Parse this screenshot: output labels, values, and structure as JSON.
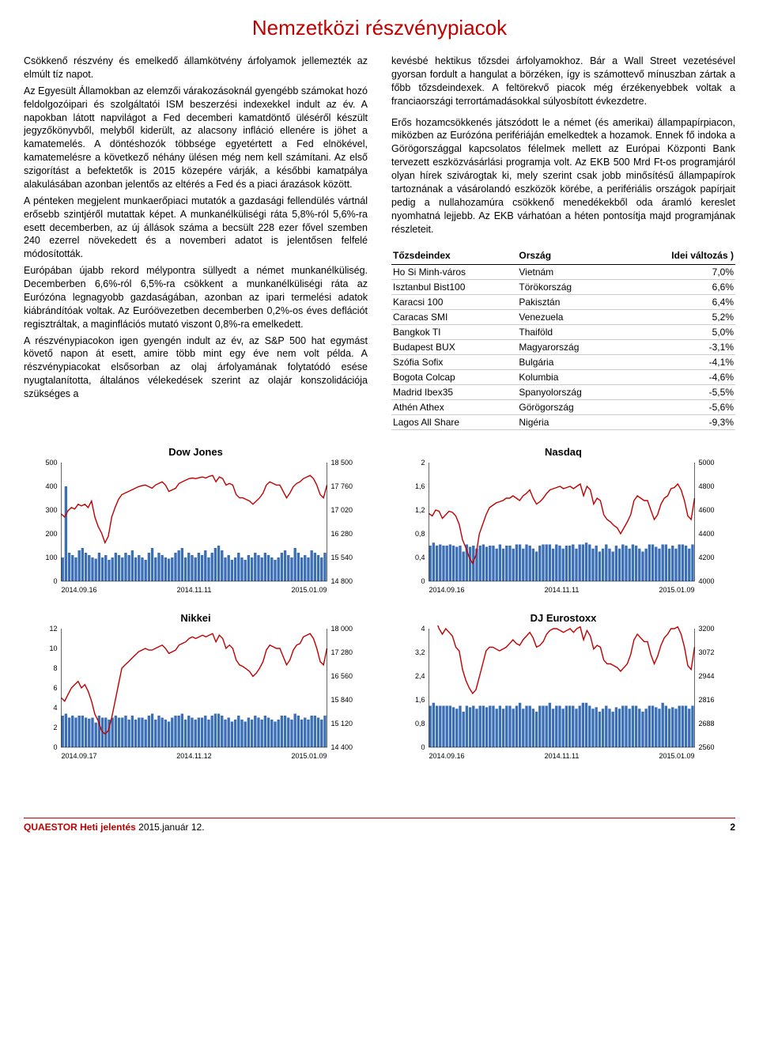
{
  "title": "Nemzetközi részvénypiacok",
  "left": {
    "p1": "Csökkenő részvény és emelkedő államkötvény árfolyamok jellemezték az elmúlt tíz napot.",
    "p2": "Az Egyesült Államokban az elemzői várakozásoknál gyengébb számokat hozó feldolgozóipari és szolgáltatói ISM beszerzési indexekkel indult az év. A napokban látott napvilágot a Fed decemberi kamatdöntő üléséről készült jegyzőkönyvből, melyből kiderült, az alacsony infláció ellenére is jöhet a kamatemelés. A döntéshozók többsége egyetértett a Fed elnökével, kamatemelésre a következő néhány ülésen még nem kell számítani. Az első szigorítást a befektetők is 2015 közepére várják, a későbbi kamatpálya alakulásában azonban jelentős az eltérés a Fed és a piaci árazások között.",
    "p3": "A pénteken megjelent munkaerőpiaci mutatók a gazdasági fellendülés vártnál erősebb szintjéről mutattak képet. A munkanélküliségi ráta 5,8%-ról 5,6%-ra esett decemberben, az új állások száma a becsült 228 ezer fővel szemben 240 ezerrel növekedett és a novemberi adatot is jelentősen felfelé módosították.",
    "p4": "Európában újabb rekord mélypontra süllyedt a német munkanélküliség. Decemberben 6,6%-ról 6,5%-ra csökkent a munkanélküliségi ráta az Eurózóna legnagyobb gazdaságában, azonban az ipari termelési adatok kiábrándítóak voltak. Az Euróövezetben decemberben 0,2%-os éves deflációt regisztráltak, a maginflációs mutató viszont 0,8%-ra emelkedett.",
    "p5": "A részvénypiacokon igen gyengén indult az év, az S&P 500 hat egymást követő napon át esett, amire több mint egy éve nem volt példa. A részvénypiacokat elsősorban az olaj árfolyamának folytatódó esése nyugtalanította, általános vélekedések szerint az olajár konszolidációja szükséges a"
  },
  "right": {
    "p1": "kevésbé hektikus tőzsdei árfolyamokhoz. Bár a Wall Street vezetésével gyorsan fordult a hangulat a börzéken, így is számottevő mínuszban zártak a főbb tőzsdeindexek. A feltörekvő piacok még érzékenyebbek voltak a franciaországi terrortámadásokkal súlyosbított évkezdetre.",
    "p2": "Erős hozamcsökkenés játszódott le a német (és amerikai) állampapírpiacon, miközben az Eurózóna perifériáján emelkedtek a hozamok. Ennek fő indoka a Görögországgal kapcsolatos félelmek mellett az Európai Központi Bank tervezett eszközvásárlási programja volt. Az EKB 500 Mrd Ft-os programjáról olyan hírek szivárogtak ki, mely szerint csak jobb minősítésű állampapírok tartoznának a vásárolandó eszközök körébe, a perifériális országok papírjait pedig a nullahozamúra csökkenő menedékekből oda áramló kereslet nyomhatná lejjebb. Az EKB várhatóan a héten pontosítja majd programjának részleteit."
  },
  "table": {
    "headers": [
      "Tőzsdeindex",
      "Ország",
      "Idei változás )"
    ],
    "rows": [
      [
        "Ho Si Minh-város",
        "Vietnám",
        "7,0%"
      ],
      [
        "Isztanbul Bist100",
        "Törökország",
        "6,6%"
      ],
      [
        "Karacsi 100",
        "Pakisztán",
        "6,4%"
      ],
      [
        "Caracas SMI",
        "Venezuela",
        "5,2%"
      ],
      [
        "Bangkok TI",
        "Thaiföld",
        "5,0%"
      ],
      [
        "Budapest BUX",
        "Magyarország",
        "-3,1%"
      ],
      [
        "Szófia Sofix",
        "Bulgária",
        "-4,1%"
      ],
      [
        "Bogota Colcap",
        "Kolumbia",
        "-4,6%"
      ],
      [
        "Madrid Ibex35",
        "Spanyolország",
        "-5,5%"
      ],
      [
        "Athén Athex",
        "Görögország",
        "-5,6%"
      ],
      [
        "Lagos All Share",
        "Nigéria",
        "-9,3%"
      ]
    ]
  },
  "charts": {
    "dow": {
      "title": "Dow Jones",
      "yleft": [
        500,
        400,
        300,
        200,
        100,
        0
      ],
      "yright": [
        18500,
        17760,
        17020,
        16280,
        15540,
        14800
      ],
      "xlabels": [
        "2014.09.16",
        "2014.11.11",
        "2015.01.09"
      ],
      "line_color": "#c00000",
      "bar_color": "#3b6fb5",
      "ylim_left": [
        0,
        500
      ],
      "ylim_right": [
        14800,
        18500
      ],
      "bars": [
        100,
        400,
        120,
        110,
        100,
        130,
        140,
        120,
        110,
        100,
        95,
        120,
        100,
        110,
        90,
        100,
        120,
        110,
        100,
        120,
        110,
        130,
        100,
        110,
        100,
        90,
        120,
        140,
        100,
        120,
        110,
        100,
        95,
        100,
        120,
        130,
        140,
        100,
        120,
        110,
        100,
        120,
        110,
        130,
        100,
        120,
        140,
        150,
        130,
        100,
        110,
        90,
        100,
        120,
        100,
        90,
        110,
        100,
        120,
        110,
        100,
        120,
        110,
        100,
        90,
        100,
        120,
        130,
        110,
        100,
        140,
        120,
        100,
        110,
        100,
        130,
        120,
        110,
        100,
        120
      ],
      "line": [
        16900,
        16800,
        17000,
        17100,
        17050,
        17200,
        17150,
        17200,
        17100,
        17300,
        16800,
        16500,
        16300,
        16000,
        16200,
        16800,
        17100,
        17350,
        17500,
        17550,
        17600,
        17650,
        17700,
        17750,
        17780,
        17800,
        17750,
        17700,
        17800,
        17850,
        17900,
        17800,
        17600,
        17650,
        17700,
        17850,
        17900,
        17950,
        18000,
        18020,
        18000,
        18030,
        18050,
        18020,
        18070,
        18100,
        17900,
        18050,
        18000,
        17800,
        17850,
        17800,
        17500,
        17400,
        17400,
        17350,
        17300,
        17200,
        17300,
        17400,
        17550,
        17800,
        17900,
        17850,
        17800,
        17800,
        17600,
        17400,
        17550,
        17750,
        17850,
        17900,
        18000,
        18050,
        18100,
        18000,
        17800,
        17500,
        17400,
        17800
      ]
    },
    "nasdaq": {
      "title": "Nasdaq",
      "yleft": [
        2.0,
        1.6,
        1.2,
        0.8,
        0.4,
        0.0
      ],
      "yright": [
        5000,
        4800,
        4600,
        4400,
        4200,
        4000
      ],
      "xlabels": [
        "2014.09.16",
        "2014.11.11",
        "2015.01.09"
      ],
      "line_color": "#c00000",
      "bar_color": "#3b6fb5",
      "ylim_left": [
        0,
        2.0
      ],
      "ylim_right": [
        4000,
        5000
      ],
      "bars": [
        0.6,
        0.65,
        0.6,
        0.62,
        0.6,
        0.6,
        0.62,
        0.6,
        0.58,
        0.6,
        0.5,
        0.62,
        0.58,
        0.6,
        0.55,
        0.6,
        0.62,
        0.58,
        0.6,
        0.6,
        0.55,
        0.62,
        0.55,
        0.6,
        0.6,
        0.55,
        0.62,
        0.62,
        0.55,
        0.62,
        0.6,
        0.55,
        0.5,
        0.6,
        0.62,
        0.62,
        0.62,
        0.55,
        0.62,
        0.6,
        0.55,
        0.6,
        0.6,
        0.62,
        0.55,
        0.62,
        0.62,
        0.65,
        0.62,
        0.55,
        0.6,
        0.5,
        0.55,
        0.62,
        0.55,
        0.5,
        0.6,
        0.55,
        0.62,
        0.6,
        0.55,
        0.62,
        0.6,
        0.55,
        0.5,
        0.55,
        0.62,
        0.62,
        0.58,
        0.55,
        0.62,
        0.62,
        0.55,
        0.6,
        0.55,
        0.62,
        0.62,
        0.6,
        0.55,
        0.62
      ],
      "line": [
        4570,
        4550,
        4600,
        4590,
        4530,
        4560,
        4590,
        4580,
        4550,
        4480,
        4350,
        4280,
        4200,
        4150,
        4220,
        4400,
        4480,
        4560,
        4620,
        4640,
        4660,
        4670,
        4680,
        4700,
        4700,
        4720,
        4700,
        4680,
        4720,
        4740,
        4770,
        4700,
        4650,
        4670,
        4700,
        4740,
        4770,
        4780,
        4790,
        4800,
        4780,
        4790,
        4800,
        4780,
        4800,
        4820,
        4720,
        4800,
        4770,
        4650,
        4700,
        4680,
        4560,
        4520,
        4500,
        4470,
        4450,
        4400,
        4450,
        4500,
        4560,
        4680,
        4720,
        4700,
        4680,
        4680,
        4600,
        4520,
        4560,
        4650,
        4700,
        4720,
        4780,
        4790,
        4820,
        4770,
        4680,
        4550,
        4520,
        4700
      ]
    },
    "nikkei": {
      "title": "Nikkei",
      "yleft": [
        12,
        10,
        8,
        6,
        4,
        2,
        0
      ],
      "yright": [
        18000,
        17280,
        16560,
        15840,
        15120,
        14400
      ],
      "xlabels": [
        "2014.09.17",
        "2014.11.12",
        "2015.01.09"
      ],
      "line_color": "#c00000",
      "bar_color": "#3b6fb5",
      "ylim_left": [
        0,
        12
      ],
      "ylim_right": [
        14400,
        18000
      ],
      "bars": [
        3.2,
        3.4,
        3,
        3.2,
        3,
        3.2,
        3.2,
        3,
        2.9,
        3,
        2.5,
        3.2,
        3,
        3,
        2.8,
        3,
        3.2,
        3,
        3,
        3.2,
        2.8,
        3.2,
        2.8,
        3,
        3,
        2.8,
        3.2,
        3.4,
        2.8,
        3.2,
        3,
        2.8,
        2.6,
        3,
        3.2,
        3.2,
        3.4,
        2.8,
        3.2,
        3,
        2.8,
        3,
        3,
        3.2,
        2.8,
        3.2,
        3.4,
        3.4,
        3.2,
        2.8,
        3,
        2.6,
        2.8,
        3.2,
        2.8,
        2.6,
        3,
        2.8,
        3.2,
        3,
        2.8,
        3.2,
        3,
        2.8,
        2.6,
        2.8,
        3.2,
        3.2,
        3,
        2.8,
        3.4,
        3.2,
        2.8,
        3,
        2.8,
        3.2,
        3.2,
        3,
        2.8,
        3.2
      ],
      "line": [
        15900,
        15800,
        16000,
        16200,
        16300,
        16400,
        16200,
        16300,
        16100,
        15800,
        15400,
        15200,
        14900,
        14800,
        14900,
        15300,
        15800,
        16300,
        16800,
        16900,
        17000,
        17100,
        17200,
        17300,
        17350,
        17400,
        17350,
        17350,
        17400,
        17450,
        17500,
        17400,
        17250,
        17300,
        17350,
        17500,
        17550,
        17600,
        17700,
        17750,
        17700,
        17750,
        17800,
        17750,
        17800,
        17850,
        17600,
        17800,
        17700,
        17400,
        17500,
        17400,
        17050,
        16900,
        16850,
        16780,
        16700,
        16550,
        16650,
        16800,
        17000,
        17350,
        17500,
        17450,
        17400,
        17400,
        17150,
        16900,
        17050,
        17350,
        17500,
        17550,
        17750,
        17800,
        17850,
        17700,
        17400,
        17000,
        16900,
        17400
      ]
    },
    "eurostoxx": {
      "title": "DJ Eurostoxx",
      "yleft": [
        4.0,
        3.2,
        2.4,
        1.6,
        0.8,
        0.0
      ],
      "yright": [
        3200,
        3072,
        2944,
        2816,
        2688,
        2560
      ],
      "xlabels": [
        "2014.09.16",
        "2014.11.11",
        "2015.01.09"
      ],
      "line_color": "#c00000",
      "bar_color": "#3b6fb5",
      "ylim_left": [
        0,
        4.0
      ],
      "ylim_right": [
        2560,
        3200
      ],
      "bars": [
        1.4,
        1.5,
        1.4,
        1.4,
        1.4,
        1.4,
        1.4,
        1.35,
        1.3,
        1.4,
        1.2,
        1.4,
        1.35,
        1.4,
        1.3,
        1.4,
        1.4,
        1.35,
        1.4,
        1.4,
        1.3,
        1.4,
        1.3,
        1.4,
        1.4,
        1.3,
        1.4,
        1.5,
        1.3,
        1.4,
        1.4,
        1.3,
        1.2,
        1.4,
        1.4,
        1.4,
        1.5,
        1.3,
        1.4,
        1.4,
        1.3,
        1.4,
        1.4,
        1.4,
        1.3,
        1.4,
        1.5,
        1.5,
        1.4,
        1.3,
        1.35,
        1.2,
        1.3,
        1.4,
        1.3,
        1.2,
        1.35,
        1.3,
        1.4,
        1.4,
        1.3,
        1.4,
        1.4,
        1.3,
        1.2,
        1.3,
        1.4,
        1.4,
        1.35,
        1.3,
        1.5,
        1.4,
        1.3,
        1.35,
        1.3,
        1.4,
        1.4,
        1.4,
        1.3,
        1.4
      ],
      "line": [
        3250,
        3230,
        3250,
        3200,
        3170,
        3200,
        3180,
        3160,
        3100,
        3080,
        2980,
        2920,
        2880,
        2850,
        2870,
        2940,
        3010,
        3080,
        3100,
        3100,
        3090,
        3080,
        3090,
        3100,
        3120,
        3140,
        3120,
        3110,
        3140,
        3160,
        3180,
        3150,
        3100,
        3110,
        3130,
        3170,
        3190,
        3200,
        3200,
        3190,
        3180,
        3190,
        3200,
        3180,
        3200,
        3210,
        3140,
        3190,
        3160,
        3090,
        3110,
        3100,
        3030,
        3010,
        3010,
        3000,
        2990,
        2970,
        2990,
        3010,
        3060,
        3140,
        3170,
        3150,
        3130,
        3130,
        3060,
        3010,
        3050,
        3110,
        3150,
        3170,
        3200,
        3200,
        3210,
        3170,
        3100,
        3000,
        2980,
        3100
      ]
    }
  },
  "footer": {
    "left_bold": "QUAESTOR Heti jelentés ",
    "left_rest": "2015.január 12.",
    "page": "2"
  }
}
